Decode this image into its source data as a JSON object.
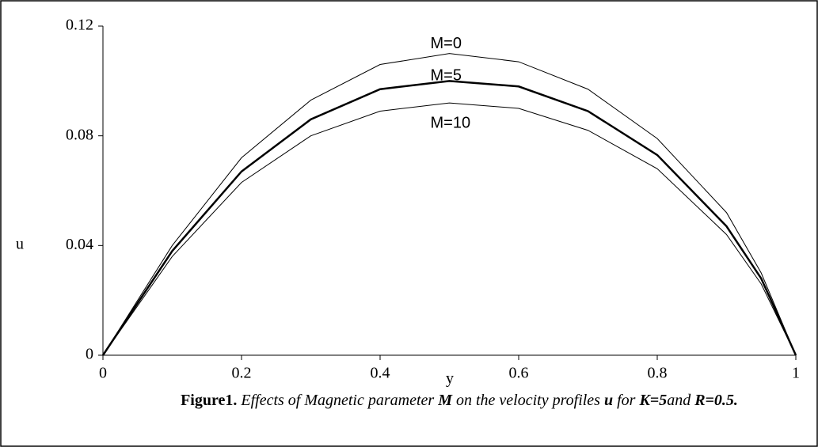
{
  "chart_data": {
    "type": "line",
    "caption": [
      {
        "text": "Figure1.",
        "style": "b"
      },
      {
        "text": " Effects of Magnetic parameter ",
        "style": "i"
      },
      {
        "text": "M",
        "style": "b i"
      },
      {
        "text": " on the velocity profiles ",
        "style": "i"
      },
      {
        "text": "u",
        "style": "b i"
      },
      {
        "text": "  for ",
        "style": "i"
      },
      {
        "text": "K=5",
        "style": "b i"
      },
      {
        "text": "and ",
        "style": "i"
      },
      {
        "text": "R=0.5.",
        "style": "b i"
      }
    ],
    "xlabel": "y",
    "ylabel": "u",
    "x": [
      0,
      0.1,
      0.2,
      0.3,
      0.4,
      0.5,
      0.6,
      0.7,
      0.8,
      0.9,
      0.95,
      1
    ],
    "series": [
      {
        "name": "M=0",
        "color": "#000000",
        "line_width": 1,
        "values": [
          0,
          0.04,
          0.072,
          0.093,
          0.106,
          0.11,
          0.107,
          0.097,
          0.079,
          0.052,
          0.03,
          0
        ]
      },
      {
        "name": "M=5",
        "color": "#000000",
        "line_width": 2.5,
        "values": [
          0,
          0.038,
          0.067,
          0.086,
          0.097,
          0.1,
          0.098,
          0.089,
          0.073,
          0.047,
          0.028,
          0
        ]
      },
      {
        "name": "M=10",
        "color": "#000000",
        "line_width": 1,
        "values": [
          0,
          0.036,
          0.063,
          0.08,
          0.089,
          0.092,
          0.09,
          0.082,
          0.068,
          0.044,
          0.026,
          0
        ]
      }
    ],
    "xlim": [
      0,
      1
    ],
    "ylim": [
      0,
      0.12
    ],
    "xticks": [
      0,
      0.2,
      0.4,
      0.6,
      0.8,
      1
    ],
    "yticks": [
      0,
      0.04,
      0.08,
      0.12
    ]
  }
}
